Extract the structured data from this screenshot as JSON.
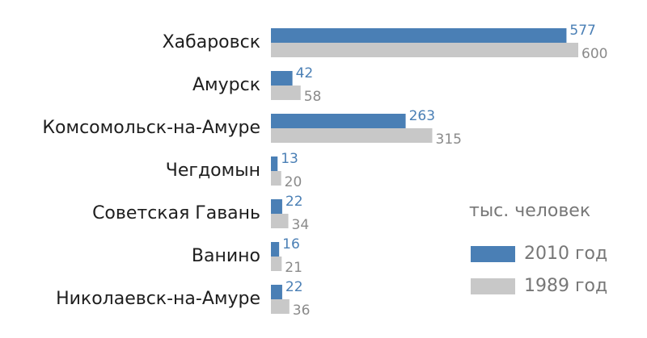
{
  "chart_data": {
    "type": "bar",
    "orientation": "horizontal",
    "subtitle": "тыс. человек",
    "categories": [
      "Хабаровск",
      "Амурск",
      "Комсомольск-на-Амуре",
      "Чегдомын",
      "Советская Гавань",
      "Ванино",
      "Николаевск-на-Амуре"
    ],
    "series": [
      {
        "name": "2010 год",
        "color": "#4a7fb5",
        "values": [
          577,
          42,
          263,
          13,
          22,
          16,
          22
        ]
      },
      {
        "name": "1989 год",
        "color": "#c8c8c8",
        "values": [
          600,
          58,
          315,
          20,
          34,
          21,
          36
        ]
      }
    ]
  }
}
